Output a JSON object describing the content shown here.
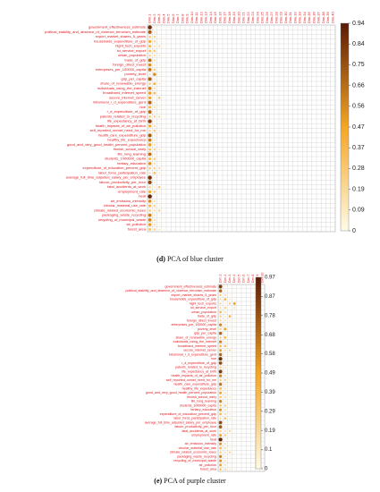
{
  "figures": [
    {
      "caption_letter": "(d)",
      "caption_text": " PCA of blue cluster"
    },
    {
      "caption_letter": "(e)",
      "caption_text": " PCA of purple cluster"
    }
  ],
  "chart_data": [
    {
      "type": "heatmap",
      "rows": [
        "government_effectiveness_estimate",
        "political_stability_and_absence_of_violence_terrorism_estimate",
        "export_market_shares_5_years",
        "households_expenditure_of_gdp",
        "hight_tech_exports",
        "ict_service_export",
        "urban_population",
        "trade_of_gdp",
        "foreign_direct_invest",
        "enterprises_per_100000_capita",
        "poverty_level",
        "gdp_per_capita",
        "share_of_renewable_energy",
        "individuals_using_the_internet",
        "broadband_internet_speed",
        "secure_internet_server",
        "intramural_r_d_expenditure_gerd",
        "hoe",
        "r_d_expenditure_of_gdp",
        "patents_related_to_recycling",
        "life_expectancy_at_birth",
        "health_impacts_of_air_pollution",
        "self_reported_unmet_need_for_me",
        "health_care_expenditure_gdp",
        "healthy_life_expectancy",
        "good_and_very_good_health_percent_population",
        "finnish_school_early",
        "life_long_learning",
        "students_1000000_capita",
        "tertiary_education",
        "expenditure_of_education_percent_gdp",
        "labor_force_participation_rate",
        "average_full_time_adjusted_salary_per_employee",
        "labour_productivity_per_hour",
        "fatal_accidents_at_work",
        "employment_rate",
        "heat",
        "air_emission_intensity",
        "circular_material_use_rate",
        "climate_related_economic_loses",
        "packaging_waste_recycling",
        "recycling_of_municipal_waste",
        "air_pollution",
        "forest_area"
      ],
      "columns": [
        "Dim.1",
        "Dim.2",
        "Dim.3",
        "Dim.4",
        "Dim.5",
        "Dim.6",
        "Dim.7",
        "Dim.8",
        "Dim.9",
        "Dim.10",
        "Dim.11",
        "Dim.12",
        "Dim.13",
        "Dim.14",
        "Dim.15",
        "Dim.16",
        "Dim.17",
        "Dim.18",
        "Dim.19",
        "Dim.20",
        "Dim.21",
        "Dim.22",
        "Dim.23",
        "Dim.24",
        "Dim.25",
        "Dim.26",
        "Dim.27",
        "Dim.28",
        "Dim.29",
        "Dim.30",
        "Dim.31",
        "Dim.32",
        "Dim.33",
        "Dim.34",
        "Dim.35",
        "Dim.36",
        "Dim.37",
        "Dim.38",
        "Dim.39",
        "Dim.40"
      ],
      "colorbar_ticks": [
        "0.94",
        "0.84",
        "0.75",
        "0.66",
        "0.56",
        "0.47",
        "0.37",
        "0.28",
        "0.19",
        "0.09",
        "0"
      ],
      "colorbar_range": [
        0,
        0.94
      ],
      "colors": {
        "low": "#fffbe6",
        "mid": "#f5a623",
        "high": "#5a1a05"
      },
      "values": [
        [
          0.88,
          0.12,
          0.05,
          0.03,
          0.02,
          0.01
        ],
        [
          0.72,
          0.15,
          0.04,
          0.02,
          0.01
        ],
        [
          0.3,
          0.25,
          0.1,
          0.05,
          0.02
        ],
        [
          0.45,
          0.22,
          0.08,
          0.03
        ],
        [
          0.4,
          0.18,
          0.2,
          0.04,
          0.02
        ],
        [
          0.35,
          0.3,
          0.06,
          0.03
        ],
        [
          0.25,
          0.2,
          0.15,
          0.05,
          0.02
        ],
        [
          0.65,
          0.2,
          0.05,
          0.02
        ],
        [
          0.55,
          0.15,
          0.1,
          0.04
        ],
        [
          0.62,
          0.3,
          0.05,
          0.02
        ],
        [
          0.2,
          0.55,
          0.1,
          0.03
        ],
        [
          0.7,
          0.1,
          0.05,
          0.02
        ],
        [
          0.28,
          0.4,
          0.15,
          0.04
        ],
        [
          0.6,
          0.2,
          0.08,
          0.03
        ],
        [
          0.5,
          0.35,
          0.06,
          0.02
        ],
        [
          0.48,
          0.1,
          0.3,
          0.05
        ],
        [
          0.68,
          0.15,
          0.05,
          0.02
        ],
        [
          0.4,
          0.2,
          0.12,
          0.03
        ],
        [
          0.66,
          0.1,
          0.06,
          0.02
        ],
        [
          0.3,
          0.25,
          0.2,
          0.04
        ],
        [
          0.8,
          0.08,
          0.04,
          0.02
        ],
        [
          0.45,
          0.2,
          0.1,
          0.03
        ],
        [
          0.25,
          0.3,
          0.15,
          0.05
        ],
        [
          0.72,
          0.12,
          0.05,
          0.02
        ],
        [
          0.6,
          0.15,
          0.08,
          0.03
        ],
        [
          0.5,
          0.2,
          0.1,
          0.02
        ],
        [
          0.35,
          0.25,
          0.15,
          0.04
        ],
        [
          0.65,
          0.15,
          0.06,
          0.02
        ],
        [
          0.4,
          0.3,
          0.1,
          0.03
        ],
        [
          0.55,
          0.2,
          0.08,
          0.02
        ],
        [
          0.3,
          0.25,
          0.2,
          0.05
        ],
        [
          0.2,
          0.35,
          0.15,
          0.04
        ],
        [
          0.85,
          0.1,
          0.04,
          0.02
        ],
        [
          0.78,
          0.12,
          0.05,
          0.02
        ],
        [
          0.25,
          0.15,
          0.3,
          0.05
        ],
        [
          0.45,
          0.3,
          0.1,
          0.03
        ],
        [
          0.9,
          0.05,
          0.03,
          0.02
        ],
        [
          0.55,
          0.2,
          0.08,
          0.03
        ],
        [
          0.4,
          0.25,
          0.12,
          0.04
        ],
        [
          0.3,
          0.2,
          0.25,
          0.05
        ],
        [
          0.6,
          0.15,
          0.08,
          0.02
        ],
        [
          0.58,
          0.2,
          0.06,
          0.02
        ],
        [
          0.5,
          0.2,
          0.1,
          0.04
        ],
        [
          0.35,
          0.25,
          0.15,
          0.05
        ]
      ]
    },
    {
      "type": "heatmap",
      "rows": [
        "government_effectiveness_estimate",
        "political_stability_and_absence_of_violence_terrorism_estimate",
        "export_market_shares_5_years",
        "households_expenditure_of_gdp",
        "hight_tech_exports",
        "ict_service_export",
        "urban_population",
        "trade_of_gdp",
        "foreign_direct_invest",
        "enterprises_per_100000_capita",
        "poverty_level",
        "gdp_per_capita",
        "share_of_renewable_energy",
        "individuals_using_the_internet",
        "broadband_internet_speed",
        "secure_internet_server",
        "intramural_r_d_expenditure_gerd",
        "hoe",
        "r_d_expenditure_of_gdp",
        "patents_related_to_recycling",
        "life_expectancy_at_birth",
        "health_impacts_of_air_pollution",
        "self_reported_unmet_need_for_me",
        "health_care_expenditure_gdp",
        "healthy_life_expectancy",
        "good_and_very_good_health_percent_population",
        "finnish_school_early",
        "life_long_learning",
        "students_1000000_capita",
        "tertiary_education",
        "expenditure_of_education_percent_gdp",
        "labor_force_participation_rate",
        "average_full_time_adjusted_salary_per_employee",
        "labour_productivity_per_hour",
        "fatal_accidents_at_work",
        "employment_rate",
        "heat",
        "air_emission_intensity",
        "circular_material_use_rate",
        "climate_related_economic_loses",
        "packaging_waste_recycling",
        "recycling_of_municipal_waste",
        "air_pollution",
        "forest_area"
      ],
      "columns": [
        "Dim.1",
        "Dim.2",
        "Dim.3",
        "Dim.4",
        "Dim.5",
        "Dim.6",
        "Dim.7",
        "Dim.8",
        "Dim.9",
        "Dim.10"
      ],
      "colorbar_ticks": [
        "0.97",
        "0.87",
        "0.78",
        "0.68",
        "0.58",
        "0.49",
        "0.39",
        "0.29",
        "0.19",
        "0.1",
        "0"
      ],
      "colorbar_range": [
        0,
        0.97
      ],
      "colors": {
        "low": "#fffbe6",
        "mid": "#f5a623",
        "high": "#5a1a05"
      },
      "values": [
        [
          0.85,
          0.1,
          0.05,
          0.03
        ],
        [
          0.7,
          0.15,
          0.05,
          0.02
        ],
        [
          0.3,
          0.2,
          0.1,
          0.05
        ],
        [
          0.2,
          0.4,
          0.15,
          0.04
        ],
        [
          0.25,
          0.1,
          0.3,
          0.5,
          0.05
        ],
        [
          0.2,
          0.3,
          0.1,
          0.2
        ],
        [
          0.4,
          0.2,
          0.1,
          0.05
        ],
        [
          0.3,
          0.15,
          0.4,
          0.05
        ],
        [
          0.25,
          0.2,
          0.15,
          0.1
        ],
        [
          0.6,
          0.2,
          0.1,
          0.05
        ],
        [
          0.3,
          0.5,
          0.1,
          0.05
        ],
        [
          0.7,
          0.1,
          0.05,
          0.02
        ],
        [
          0.3,
          0.4,
          0.1,
          0.05
        ],
        [
          0.6,
          0.15,
          0.1,
          0.05
        ],
        [
          0.4,
          0.35,
          0.1,
          0.05
        ],
        [
          0.5,
          0.2,
          0.25,
          0.05
        ],
        [
          0.7,
          0.1,
          0.05,
          0.03
        ],
        [
          0.9,
          0.1,
          0.05,
          0.02
        ],
        [
          0.8,
          0.1,
          0.05,
          0.02
        ],
        [
          0.3,
          0.2,
          0.1,
          0.05
        ],
        [
          0.85,
          0.08,
          0.04,
          0.02
        ],
        [
          0.6,
          0.2,
          0.1,
          0.04
        ],
        [
          0.3,
          0.3,
          0.15,
          0.05
        ],
        [
          0.65,
          0.15,
          0.1,
          0.03
        ],
        [
          0.4,
          0.2,
          0.1,
          0.05
        ],
        [
          0.5,
          0.2,
          0.1,
          0.05
        ],
        [
          0.35,
          0.25,
          0.15,
          0.05
        ],
        [
          0.6,
          0.15,
          0.1,
          0.03
        ],
        [
          0.35,
          0.3,
          0.1,
          0.05
        ],
        [
          0.55,
          0.2,
          0.1,
          0.05
        ],
        [
          0.4,
          0.25,
          0.15,
          0.05
        ],
        [
          0.25,
          0.35,
          0.15,
          0.05
        ],
        [
          0.8,
          0.1,
          0.05,
          0.02
        ],
        [
          0.75,
          0.15,
          0.05,
          0.02
        ],
        [
          0.3,
          0.2,
          0.25,
          0.05
        ],
        [
          0.5,
          0.3,
          0.1,
          0.05
        ],
        [
          0.95,
          0.05,
          0.03,
          0.02
        ],
        [
          0.55,
          0.2,
          0.1,
          0.05
        ],
        [
          0.4,
          0.25,
          0.1,
          0.05
        ],
        [
          0.3,
          0.2,
          0.25,
          0.05
        ],
        [
          0.6,
          0.15,
          0.1,
          0.03
        ],
        [
          0.55,
          0.2,
          0.05,
          0.02
        ],
        [
          0.5,
          0.2,
          0.1,
          0.05
        ],
        [
          0.35,
          0.25,
          0.15,
          0.05
        ]
      ]
    }
  ]
}
